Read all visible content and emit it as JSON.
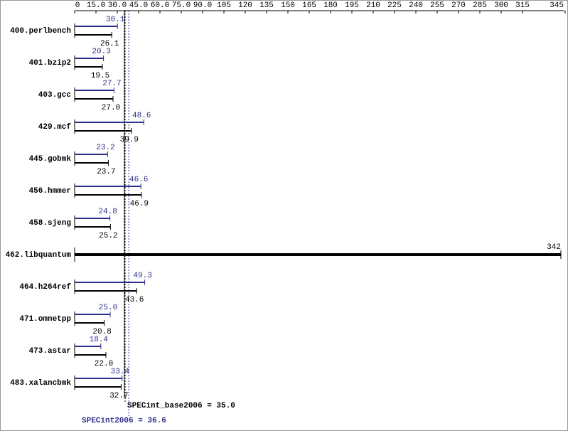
{
  "chart_data": {
    "type": "bar",
    "orientation": "horizontal",
    "categories": [
      "400.perlbench",
      "401.bzip2",
      "403.gcc",
      "429.mcf",
      "445.gobmk",
      "456.hmmer",
      "458.sjeng",
      "462.libquantum",
      "464.h264ref",
      "471.omnetpp",
      "473.astar",
      "483.xalancbmk"
    ],
    "series": [
      {
        "name": "SPECint2006",
        "color": "#2e2e8c",
        "values": [
          30.1,
          20.3,
          27.7,
          48.6,
          23.2,
          46.6,
          24.8,
          null,
          49.3,
          25.0,
          18.4,
          33.4
        ],
        "value_labels": [
          "30.1",
          "20.3",
          "27.7",
          "48.6",
          "23.2",
          "46.6",
          "24.8",
          null,
          "49.3",
          "25.0",
          "18.4",
          "33.4"
        ]
      },
      {
        "name": "SPECint_base2006",
        "color": "#000000",
        "values": [
          26.1,
          19.5,
          27.0,
          39.9,
          23.7,
          46.9,
          25.2,
          342,
          43.6,
          20.8,
          22.0,
          32.7
        ],
        "value_labels": [
          "26.1",
          "19.5",
          "27.0",
          "39.9",
          "23.7",
          "46.9",
          "25.2",
          "342",
          "43.6",
          "20.8",
          "22.0",
          "32.7"
        ]
      }
    ],
    "xlim": [
      0,
      345
    ],
    "xticks": [
      0,
      {
        "value": 15,
        "label": "15.0"
      },
      {
        "value": 30,
        "label": "30.0"
      },
      {
        "value": 45,
        "label": "45.0"
      },
      {
        "value": 60,
        "label": "60.0"
      },
      {
        "value": 75,
        "label": "75.0"
      },
      {
        "value": 90,
        "label": "90.0"
      },
      105,
      120,
      135,
      150,
      165,
      180,
      195,
      210,
      225,
      240,
      255,
      270,
      285,
      300,
      315,
      345
    ],
    "reference_lines": [
      {
        "text": "SPECint_base2006 = 35.0",
        "value": 35.0,
        "color": "#000000"
      },
      {
        "text": "SPECint2006 = 36.6",
        "value": 36.6,
        "color": "#2e2e8c"
      }
    ]
  }
}
